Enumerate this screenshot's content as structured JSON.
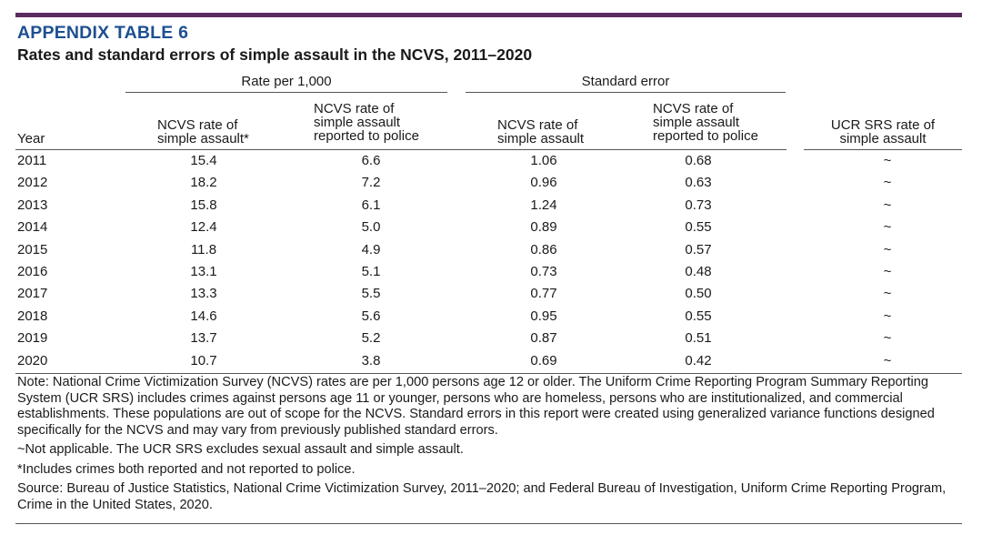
{
  "header": {
    "appendix_label": "APPENDIX TABLE 6",
    "title": "Rates and standard errors of simple assault in the NCVS, 2011–2020"
  },
  "groups": {
    "rate": "Rate per 1,000",
    "se": "Standard error"
  },
  "columns": {
    "year": "Year",
    "rate_ncvs": [
      "NCVS rate of",
      "simple assault*"
    ],
    "rate_reported": [
      "NCVS rate of",
      "simple assault",
      "reported to police"
    ],
    "se_ncvs": [
      "NCVS rate of",
      "simple assault"
    ],
    "se_reported": [
      "NCVS rate of",
      "simple assault",
      "reported to police"
    ],
    "ucr": [
      "UCR SRS rate of",
      "simple assault"
    ]
  },
  "rows": [
    {
      "year": "2011",
      "rate": "15.4",
      "rate_police": "6.6",
      "se": "1.06",
      "se_police": "0.68",
      "ucr": "~"
    },
    {
      "year": "2012",
      "rate": "18.2",
      "rate_police": "7.2",
      "se": "0.96",
      "se_police": "0.63",
      "ucr": "~"
    },
    {
      "year": "2013",
      "rate": "15.8",
      "rate_police": "6.1",
      "se": "1.24",
      "se_police": "0.73",
      "ucr": "~"
    },
    {
      "year": "2014",
      "rate": "12.4",
      "rate_police": "5.0",
      "se": "0.89",
      "se_police": "0.55",
      "ucr": "~"
    },
    {
      "year": "2015",
      "rate": "11.8",
      "rate_police": "4.9",
      "se": "0.86",
      "se_police": "0.57",
      "ucr": "~"
    },
    {
      "year": "2016",
      "rate": "13.1",
      "rate_police": "5.1",
      "se": "0.73",
      "se_police": "0.48",
      "ucr": "~"
    },
    {
      "year": "2017",
      "rate": "13.3",
      "rate_police": "5.5",
      "se": "0.77",
      "se_police": "0.50",
      "ucr": "~"
    },
    {
      "year": "2018",
      "rate": "14.6",
      "rate_police": "5.6",
      "se": "0.95",
      "se_police": "0.55",
      "ucr": "~"
    },
    {
      "year": "2019",
      "rate": "13.7",
      "rate_police": "5.2",
      "se": "0.87",
      "se_police": "0.51",
      "ucr": "~"
    },
    {
      "year": "2020",
      "rate": "10.7",
      "rate_police": "3.8",
      "se": "0.69",
      "se_police": "0.42",
      "ucr": "~"
    }
  ],
  "notes": {
    "main": "Note: National Crime Victimization Survey (NCVS) rates are per 1,000 persons age 12 or older. The Uniform Crime Reporting Program Summary Reporting System (UCR SRS) includes crimes against persons age 11 or younger, persons who are homeless, persons who are institutionalized, and commercial establishments. These populations are out of scope for the NCVS. Standard errors in this report were created using generalized variance functions designed specifically for the NCVS and may vary from previously published standard errors.",
    "tilde": "~Not applicable. The UCR SRS excludes sexual assault and simple assault.",
    "asterisk": "*Includes crimes both reported and not reported to police.",
    "source": "Source: Bureau of Justice Statistics, National Crime Victimization Survey, 2011–2020; and Federal Bureau of Investigation, Uniform Crime Reporting Program, Crime in the United States, 2020."
  },
  "colors": {
    "top_bar": "#5b2c5f",
    "appendix_label": "#1d4f91"
  }
}
